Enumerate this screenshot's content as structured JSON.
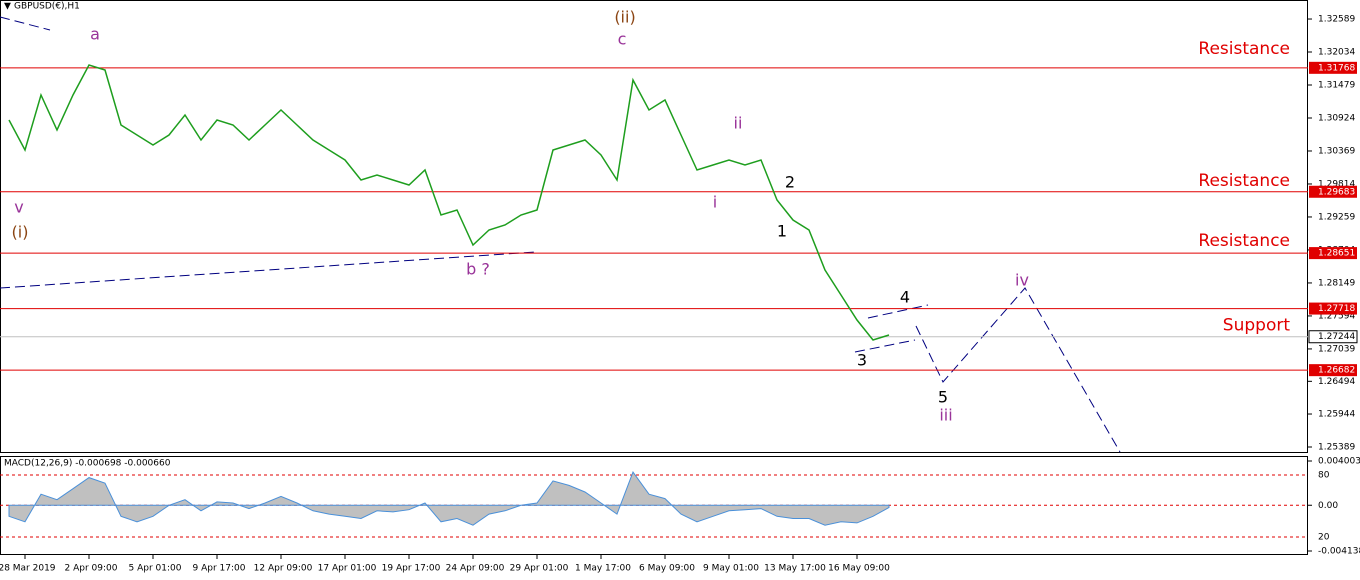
{
  "chart_data": {
    "type": "line",
    "symbol": "GBPUSD(€),H1",
    "ylim": [
      1.25305,
      1.32909
    ],
    "yticks": [
      1.32589,
      1.32034,
      1.31479,
      1.30924,
      1.30369,
      1.29814,
      1.29259,
      1.28704,
      1.28149,
      1.27594,
      1.27039,
      1.26494,
      1.25944,
      1.25389
    ],
    "categories": [
      null,
      "28 Mar 2019",
      null,
      null,
      null,
      "2 Apr 09:00",
      null,
      null,
      null,
      "5 Apr 01:00",
      null,
      null,
      null,
      "9 Apr 17:00",
      null,
      null,
      null,
      "12 Apr 09:00",
      null,
      null,
      null,
      "17 Apr 01:00",
      null,
      null,
      null,
      "19 Apr 17:00",
      null,
      null,
      null,
      "24 Apr 09:00",
      null,
      null,
      null,
      "29 Apr 01:00",
      null,
      null,
      null,
      "1 May 17:00",
      null,
      null,
      null,
      "6 May 09:00",
      null,
      null,
      null,
      "9 May 01:00",
      null,
      null,
      null,
      "13 May 17:00",
      null,
      null,
      null,
      "16 May 09:00",
      null,
      null
    ],
    "series": [
      {
        "color": "#1e9e1e",
        "values": [
          1.3089,
          1.30386,
          1.31311,
          1.30722,
          1.31311,
          1.31815,
          1.31731,
          1.30806,
          1.30638,
          1.3047,
          1.30638,
          1.30974,
          1.30554,
          1.3089,
          1.30806,
          1.30554,
          1.30806,
          1.31058,
          1.30806,
          1.30554,
          1.30386,
          1.30217,
          1.29881,
          1.29965,
          1.29881,
          1.29797,
          1.30049,
          1.29292,
          1.29376,
          1.28788,
          1.2904,
          1.29124,
          1.29292,
          1.29376,
          1.30386,
          1.3047,
          1.30554,
          1.30301,
          1.29881,
          1.31563,
          1.31058,
          1.31227,
          1.30638,
          1.30049,
          1.30133,
          1.30217,
          1.30133,
          1.30217,
          1.29545,
          1.29208,
          1.2904,
          1.28367,
          1.27947,
          1.27526,
          1.2719,
          1.27274
        ]
      }
    ],
    "levels": [
      {
        "value": 1.31768,
        "label": "Resistance"
      },
      {
        "value": 1.29683,
        "label": "Resistance"
      },
      {
        "value": 1.28651,
        "label": "Resistance"
      },
      {
        "value": 1.27718,
        "label": "Support"
      },
      {
        "value": 1.26682
      }
    ],
    "current_price": 1.27244,
    "annotations": [
      {
        "text": "v",
        "color": "#993399"
      },
      {
        "text": "(i)",
        "color": "#8b4513"
      },
      {
        "text": "a",
        "color": "#993399"
      },
      {
        "text": "(ii)",
        "color": "#8b4513"
      },
      {
        "text": "c",
        "color": "#993399"
      },
      {
        "text": "b ?",
        "color": "#993399"
      },
      {
        "text": "ii",
        "color": "#993399"
      },
      {
        "text": "i",
        "color": "#993399"
      },
      {
        "text": "2",
        "color": "#000000"
      },
      {
        "text": "1",
        "color": "#000000"
      },
      {
        "text": "4",
        "color": "#000000"
      },
      {
        "text": "3",
        "color": "#000000"
      },
      {
        "text": "5",
        "color": "#000000"
      },
      {
        "text": "iii",
        "color": "#993399"
      },
      {
        "text": "iv",
        "color": "#993399"
      }
    ],
    "macd": {
      "title": "MACD(12,26,9) -0.000698 -0.000660",
      "ylim": [
        -0.004138,
        0.004003
      ],
      "yticks": [
        0.004003,
        {
          "value": 0,
          "label": "0.00"
        },
        -0.004138
      ],
      "guides": [
        80,
        20
      ],
      "color": "#c0c0c0",
      "values": [
        -0.001,
        -0.0015,
        0.001,
        0.0005,
        0.0015,
        0.0025,
        0.002,
        -0.001,
        -0.0015,
        -0.001,
        0,
        0.0005,
        -0.0005,
        0.0003,
        0.0002,
        -0.0003,
        0.0002,
        0.0008,
        0.0002,
        -0.0005,
        -0.0008,
        -0.001,
        -0.0012,
        -0.0005,
        -0.0006,
        -0.0004,
        0.0002,
        -0.0015,
        -0.0012,
        -0.0018,
        -0.0008,
        -0.0005,
        0,
        0.0002,
        0.0022,
        0.0018,
        0.0012,
        0.0002,
        -0.0008,
        0.003,
        0.001,
        0.0006,
        -0.0008,
        -0.0015,
        -0.001,
        -0.0005,
        -0.0004,
        -0.0003,
        -0.001,
        -0.0012,
        -0.0012,
        -0.0018,
        -0.0015,
        -0.0016,
        -0.001,
        -0.0002
      ]
    }
  }
}
